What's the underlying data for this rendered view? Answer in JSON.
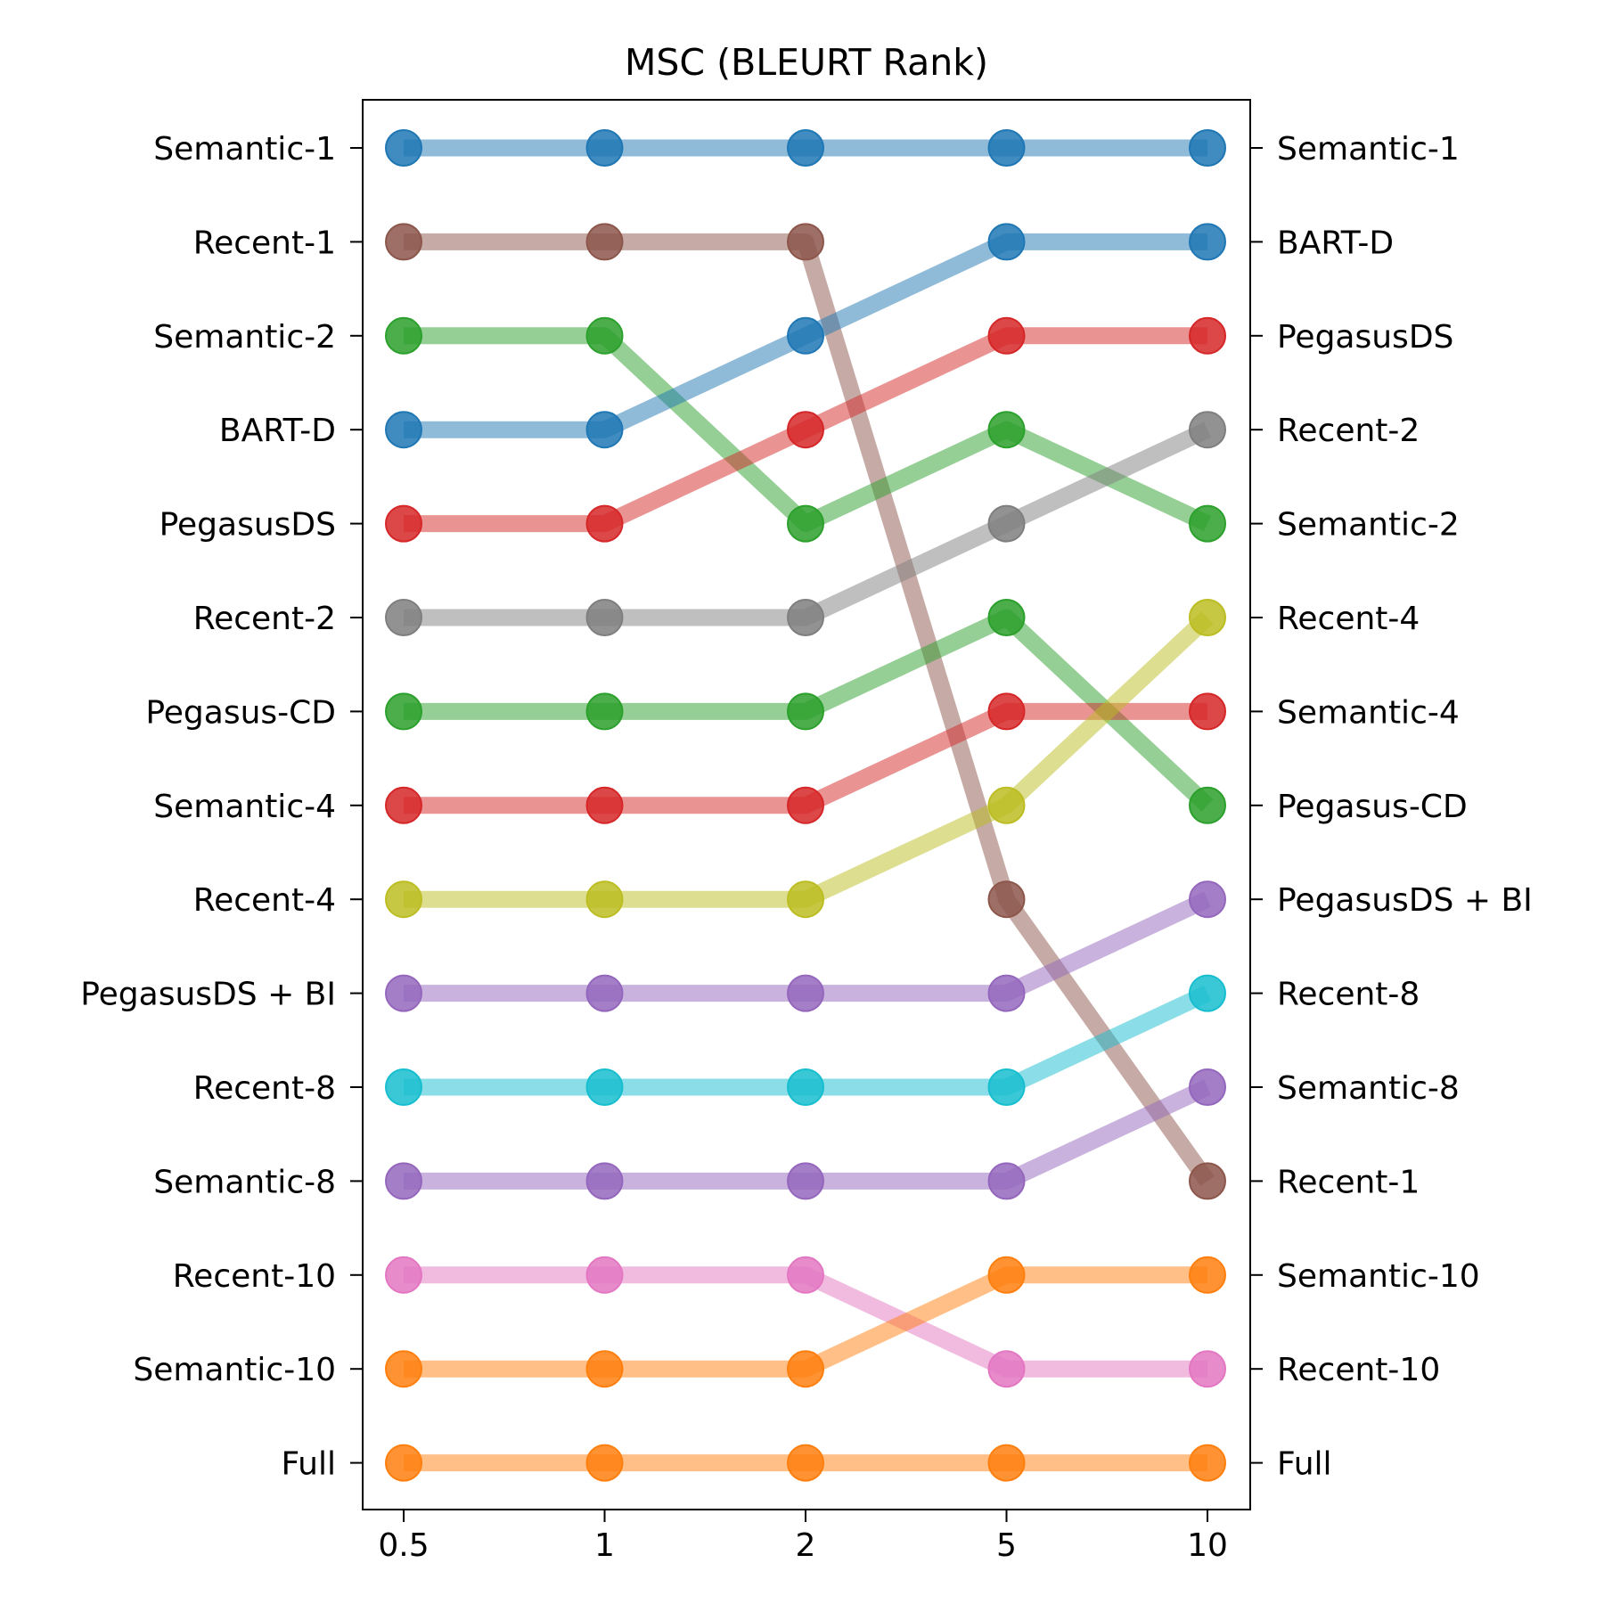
{
  "chart_data": {
    "type": "line",
    "title": "MSC (BLEURT Rank)",
    "xlabel": "",
    "ylabel": "",
    "x": [
      "0.5",
      "1",
      "2",
      "5",
      "10"
    ],
    "rank_range": [
      1,
      15
    ],
    "grid": false,
    "legend": "none",
    "left_tick_labels": [
      "Semantic-1",
      "Recent-1",
      "Semantic-2",
      "BART-D",
      "PegasusDS",
      "Recent-2",
      "Pegasus-CD",
      "Semantic-4",
      "Recent-4",
      "PegasusDS + BI",
      "Recent-8",
      "Semantic-8",
      "Recent-10",
      "Semantic-10",
      "Full"
    ],
    "right_tick_labels": [
      "Semantic-1",
      "BART-D",
      "PegasusDS",
      "Recent-2",
      "Semantic-2",
      "Recent-4",
      "Semantic-4",
      "Pegasus-CD",
      "PegasusDS + BI",
      "Recent-8",
      "Semantic-8",
      "Recent-1",
      "Semantic-10",
      "Recent-10",
      "Full"
    ],
    "series": [
      {
        "color": "#1f77b4",
        "ranks": [
          1,
          1,
          1,
          1,
          1
        ]
      },
      {
        "color": "#8c564b",
        "ranks": [
          2,
          2,
          2,
          9,
          12
        ]
      },
      {
        "color": "#2ca02c",
        "ranks": [
          3,
          3,
          5,
          4,
          5
        ]
      },
      {
        "color": "#1f77b4",
        "ranks": [
          4,
          4,
          3,
          2,
          2
        ]
      },
      {
        "color": "#d62728",
        "ranks": [
          5,
          5,
          4,
          3,
          3
        ]
      },
      {
        "color": "#7f7f7f",
        "ranks": [
          6,
          6,
          6,
          5,
          4
        ]
      },
      {
        "color": "#2ca02c",
        "ranks": [
          7,
          7,
          7,
          6,
          8
        ]
      },
      {
        "color": "#d62728",
        "ranks": [
          8,
          8,
          8,
          7,
          7
        ]
      },
      {
        "color": "#bcbd22",
        "ranks": [
          9,
          9,
          9,
          8,
          6
        ]
      },
      {
        "color": "#9467bd",
        "ranks": [
          10,
          10,
          10,
          10,
          9
        ]
      },
      {
        "color": "#17becf",
        "ranks": [
          11,
          11,
          11,
          11,
          10
        ]
      },
      {
        "color": "#9467bd",
        "ranks": [
          12,
          12,
          12,
          12,
          11
        ]
      },
      {
        "color": "#e377c2",
        "ranks": [
          13,
          13,
          13,
          14,
          14
        ]
      },
      {
        "color": "#ff7f0e",
        "ranks": [
          14,
          14,
          14,
          13,
          13
        ]
      },
      {
        "color": "#ff7f0e",
        "ranks": [
          15,
          15,
          15,
          15,
          15
        ]
      }
    ]
  }
}
